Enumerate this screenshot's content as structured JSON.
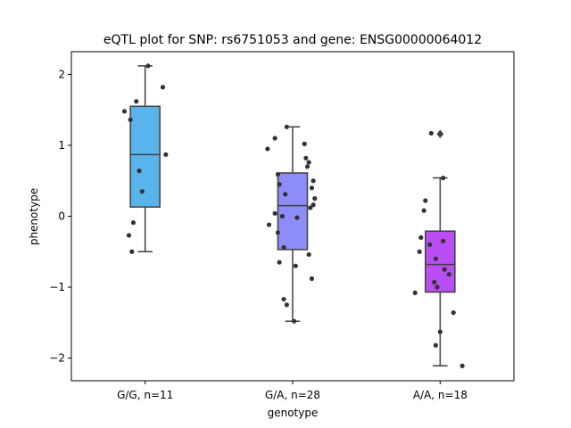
{
  "chart_data": {
    "type": "box",
    "title": "eQTL plot for SNP: rs6751053 and gene: ENSG00000064012",
    "xlabel": "genotype",
    "ylabel": "phenotype",
    "ylim": [
      -2.32,
      2.32
    ],
    "yticks": [
      -2,
      -1,
      0,
      1,
      2
    ],
    "ytick_labels": [
      "−2",
      "−1",
      "0",
      "1",
      "2"
    ],
    "grid": false,
    "categories": [
      "G/G, n=11",
      "G/A, n=28",
      "A/A, n=18"
    ],
    "colors": [
      "#5ab4ec",
      "#8e8cf8",
      "#b94ef2"
    ],
    "boxes": [
      {
        "q1": 0.13,
        "median": 0.87,
        "q3": 1.55,
        "whisker_low": -0.5,
        "whisker_high": 2.12,
        "outliers": []
      },
      {
        "q1": -0.47,
        "median": 0.15,
        "q3": 0.61,
        "whisker_low": -1.48,
        "whisker_high": 1.26,
        "outliers": []
      },
      {
        "q1": -1.07,
        "median": -0.68,
        "q3": -0.21,
        "whisker_low": -2.11,
        "whisker_high": 0.54,
        "outliers": [
          1.16
        ]
      }
    ],
    "points": [
      [
        [
          0.02,
          2.12
        ],
        [
          0.12,
          1.82
        ],
        [
          -0.06,
          1.62
        ],
        [
          -0.14,
          1.48
        ],
        [
          -0.1,
          1.36
        ],
        [
          0.14,
          0.87
        ],
        [
          -0.04,
          0.64
        ],
        [
          -0.02,
          0.35
        ],
        [
          -0.08,
          -0.09
        ],
        [
          -0.11,
          -0.27
        ],
        [
          -0.09,
          -0.5
        ]
      ],
      [
        [
          -0.04,
          1.26
        ],
        [
          -0.12,
          1.1
        ],
        [
          0.08,
          1.02
        ],
        [
          -0.17,
          0.95
        ],
        [
          0.09,
          0.82
        ],
        [
          0.11,
          0.76
        ],
        [
          0.1,
          0.7
        ],
        [
          -0.1,
          0.59
        ],
        [
          0.14,
          0.5
        ],
        [
          -0.09,
          0.45
        ],
        [
          0.13,
          0.4
        ],
        [
          -0.05,
          0.31
        ],
        [
          0.15,
          0.25
        ],
        [
          0.14,
          0.16
        ],
        [
          0.12,
          0.12
        ],
        [
          -0.12,
          0.04
        ],
        [
          -0.07,
          0.0
        ],
        [
          0.03,
          -0.02
        ],
        [
          -0.16,
          -0.12
        ],
        [
          -0.1,
          -0.23
        ],
        [
          -0.06,
          -0.44
        ],
        [
          0.11,
          -0.54
        ],
        [
          -0.09,
          -0.65
        ],
        [
          0.02,
          -0.7
        ],
        [
          0.13,
          -0.88
        ],
        [
          -0.06,
          -1.17
        ],
        [
          -0.04,
          -1.25
        ],
        [
          0.01,
          -1.48
        ]
      ],
      [
        [
          -0.06,
          1.17
        ],
        [
          0.02,
          0.54
        ],
        [
          -0.1,
          0.22
        ],
        [
          -0.11,
          0.08
        ],
        [
          -0.13,
          -0.3
        ],
        [
          0.02,
          -0.35
        ],
        [
          -0.07,
          -0.4
        ],
        [
          -0.14,
          -0.5
        ],
        [
          -0.03,
          -0.6
        ],
        [
          0.03,
          -0.75
        ],
        [
          0.06,
          -0.82
        ],
        [
          -0.04,
          -0.93
        ],
        [
          -0.02,
          -1.0
        ],
        [
          -0.17,
          -1.08
        ],
        [
          0.09,
          -1.36
        ],
        [
          0.0,
          -1.63
        ],
        [
          -0.03,
          -1.82
        ],
        [
          0.15,
          -2.11
        ]
      ]
    ]
  }
}
